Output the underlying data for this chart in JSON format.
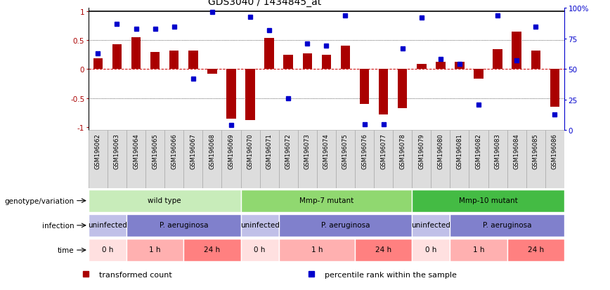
{
  "title": "GDS3040 / 1434845_at",
  "samples": [
    "GSM196062",
    "GSM196063",
    "GSM196064",
    "GSM196065",
    "GSM196066",
    "GSM196067",
    "GSM196068",
    "GSM196069",
    "GSM196070",
    "GSM196071",
    "GSM196072",
    "GSM196073",
    "GSM196074",
    "GSM196075",
    "GSM196076",
    "GSM196077",
    "GSM196078",
    "GSM196079",
    "GSM196080",
    "GSM196081",
    "GSM196082",
    "GSM196083",
    "GSM196084",
    "GSM196085",
    "GSM196086"
  ],
  "bar_values": [
    0.18,
    0.43,
    0.55,
    0.3,
    0.32,
    0.32,
    -0.08,
    -0.85,
    -0.88,
    0.53,
    0.25,
    0.27,
    0.25,
    0.4,
    -0.6,
    -0.78,
    -0.67,
    0.09,
    0.12,
    0.13,
    -0.16,
    0.34,
    0.65,
    0.32,
    -0.65
  ],
  "percentile_values": [
    63,
    87,
    83,
    83,
    85,
    42,
    97,
    4,
    93,
    82,
    26,
    71,
    69,
    94,
    5,
    5,
    67,
    92,
    58,
    54,
    21,
    94,
    57,
    85,
    13
  ],
  "bar_color": "#aa0000",
  "dot_color": "#0000cc",
  "bg_color": "#ffffff",
  "zero_line_color": "#cc0000",
  "yticks_left": [
    -1.0,
    -0.5,
    0.0,
    0.5,
    1.0
  ],
  "ytick_labels_left": [
    "-1",
    "-0.5",
    "0",
    "0.5",
    "1"
  ],
  "yticks_right": [
    0,
    25,
    50,
    75,
    100
  ],
  "ytick_labels_right": [
    "0",
    "25",
    "50",
    "75",
    "100%"
  ],
  "genotype_groups": [
    {
      "label": "wild type",
      "start": 0,
      "end": 8,
      "color": "#c8ecba"
    },
    {
      "label": "Mmp-7 mutant",
      "start": 8,
      "end": 17,
      "color": "#90d870"
    },
    {
      "label": "Mmp-10 mutant",
      "start": 17,
      "end": 25,
      "color": "#44bb44"
    }
  ],
  "infection_groups": [
    {
      "label": "uninfected",
      "start": 0,
      "end": 2,
      "color": "#c0c0e8"
    },
    {
      "label": "P. aeruginosa",
      "start": 2,
      "end": 8,
      "color": "#8080cc"
    },
    {
      "label": "uninfected",
      "start": 8,
      "end": 10,
      "color": "#c0c0e8"
    },
    {
      "label": "P. aeruginosa",
      "start": 10,
      "end": 17,
      "color": "#8080cc"
    },
    {
      "label": "uninfected",
      "start": 17,
      "end": 19,
      "color": "#c0c0e8"
    },
    {
      "label": "P. aeruginosa",
      "start": 19,
      "end": 25,
      "color": "#8080cc"
    }
  ],
  "time_groups": [
    {
      "label": "0 h",
      "start": 0,
      "end": 2,
      "color": "#ffe0e0"
    },
    {
      "label": "1 h",
      "start": 2,
      "end": 5,
      "color": "#ffb0b0"
    },
    {
      "label": "24 h",
      "start": 5,
      "end": 8,
      "color": "#ff8080"
    },
    {
      "label": "0 h",
      "start": 8,
      "end": 10,
      "color": "#ffe0e0"
    },
    {
      "label": "1 h",
      "start": 10,
      "end": 14,
      "color": "#ffb0b0"
    },
    {
      "label": "24 h",
      "start": 14,
      "end": 17,
      "color": "#ff8080"
    },
    {
      "label": "0 h",
      "start": 17,
      "end": 19,
      "color": "#ffe0e0"
    },
    {
      "label": "1 h",
      "start": 19,
      "end": 22,
      "color": "#ffb0b0"
    },
    {
      "label": "24 h",
      "start": 22,
      "end": 25,
      "color": "#ff8080"
    }
  ],
  "row_labels": [
    "genotype/variation",
    "infection",
    "time"
  ],
  "legend_items": [
    {
      "label": "transformed count",
      "color": "#aa0000"
    },
    {
      "label": "percentile rank within the sample",
      "color": "#0000cc"
    }
  ],
  "xtick_bg_color": "#dddddd",
  "xtick_border_color": "#aaaaaa"
}
